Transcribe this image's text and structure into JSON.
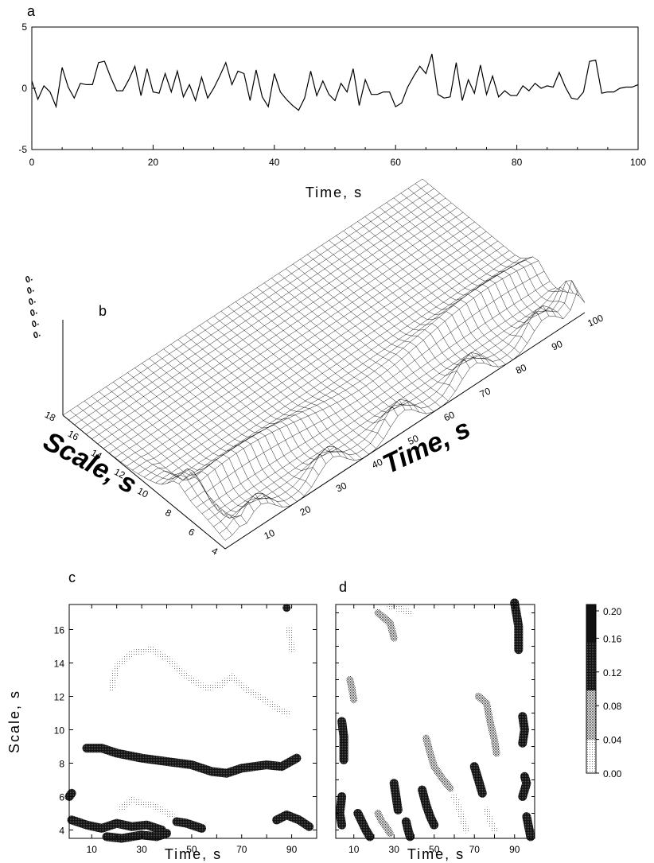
{
  "chart_data": [
    {
      "panel": "a",
      "type": "line",
      "xlabel": "Time, s",
      "xlim": [
        0,
        100
      ],
      "ylim": [
        -5,
        5
      ],
      "xticks": [
        0,
        20,
        40,
        60,
        80,
        100
      ],
      "yticks": [
        5,
        0,
        -5
      ],
      "series": [
        {
          "x": [
            0,
            1,
            2,
            3,
            4,
            5,
            6,
            7,
            8,
            9,
            10,
            11,
            12,
            13,
            14,
            15,
            16,
            17,
            18,
            19,
            20,
            21,
            22,
            23,
            24,
            25,
            26,
            27,
            28,
            29,
            30,
            31,
            32,
            33,
            34,
            35,
            36,
            37,
            38,
            39,
            40,
            41,
            42,
            43,
            44,
            45,
            46,
            47,
            48,
            49,
            50,
            51,
            52,
            53,
            54,
            55,
            56,
            57,
            58,
            59,
            60,
            61,
            62,
            63,
            64,
            65,
            66,
            67,
            68,
            69,
            70,
            71,
            72,
            73,
            74,
            75,
            76,
            77,
            78,
            79,
            80,
            81,
            82,
            83,
            84,
            85,
            86,
            87,
            88,
            89,
            90,
            91,
            92,
            93,
            94,
            95,
            96,
            97,
            98,
            99,
            100
          ],
          "y": [
            0.6,
            -0.9,
            0.2,
            -0.3,
            -1.5,
            1.7,
            0.1,
            -0.8,
            0.4,
            0.3,
            0.3,
            2.1,
            2.2,
            0.9,
            -0.2,
            -0.2,
            0.7,
            1.8,
            -0.6,
            1.6,
            -0.3,
            -0.4,
            1.2,
            -0.3,
            1.4,
            -0.7,
            0.3,
            -1.0,
            0.9,
            -0.8,
            0.0,
            1.0,
            2.1,
            0.3,
            1.4,
            1.2,
            -1.0,
            1.5,
            -0.7,
            -1.5,
            1.2,
            -0.3,
            -0.9,
            -1.4,
            -1.8,
            -0.8,
            1.4,
            -0.6,
            0.6,
            -0.5,
            -1.0,
            0.4,
            -0.3,
            1.6,
            -1.4,
            0.7,
            -0.5,
            -0.5,
            -0.3,
            -0.3,
            -1.5,
            -1.2,
            0.1,
            1.0,
            1.8,
            1.2,
            2.8,
            -0.5,
            -0.8,
            -0.7,
            2.1,
            -1.0,
            0.7,
            -0.4,
            1.9,
            -0.5,
            1.0,
            -0.7,
            -0.2,
            -0.6,
            -0.6,
            0.2,
            -0.2,
            0.4,
            0.0,
            0.2,
            0.1,
            1.3,
            0.1,
            -0.8,
            -0.9,
            -0.3,
            2.2,
            2.3,
            -0.4,
            -0.3,
            -0.3,
            0.0,
            0.1,
            0.1,
            0.3
          ]
        }
      ]
    },
    {
      "panel": "b",
      "type": "surface",
      "xlabel": "Time, s",
      "ylabel": "Scale, s",
      "xticks": [
        10,
        20,
        30,
        40,
        50,
        60,
        70,
        80,
        90,
        100
      ],
      "yticks": [
        18,
        16,
        14,
        12,
        10,
        8,
        6,
        4
      ],
      "zticks": [
        "0.",
        "0.",
        "0.",
        "0.",
        "0.",
        "0."
      ]
    },
    {
      "panel": "c",
      "type": "heatmap",
      "xlabel": "Time, s",
      "ylabel": "Scale, s",
      "xlim": [
        1,
        100
      ],
      "ylim": [
        3.5,
        17.5
      ],
      "xticks": [
        10,
        30,
        50,
        70,
        90
      ],
      "yticks": [
        4,
        6,
        8,
        10,
        12,
        14,
        16
      ],
      "ridges": [
        {
          "level": 0.2,
          "points": [
            [
              2,
              4.6
            ],
            [
              8,
              4.3
            ],
            [
              14,
              4.1
            ],
            [
              20,
              4.4
            ],
            [
              26,
              4.2
            ],
            [
              32,
              4.3
            ],
            [
              38,
              4.0
            ]
          ]
        },
        {
          "level": 0.2,
          "points": [
            [
              16,
              3.6
            ],
            [
              22,
              3.5
            ],
            [
              30,
              3.7
            ],
            [
              36,
              3.6
            ],
            [
              40,
              3.8
            ]
          ]
        },
        {
          "level": 0.2,
          "points": [
            [
              44,
              4.5
            ],
            [
              48,
              4.4
            ],
            [
              54,
              4.1
            ]
          ]
        },
        {
          "level": 0.2,
          "points": [
            [
              84,
              4.6
            ],
            [
              88,
              4.9
            ],
            [
              93,
              4.6
            ],
            [
              97,
              4.2
            ]
          ]
        },
        {
          "level": 0.2,
          "points": [
            [
              8,
              8.9
            ],
            [
              14,
              8.9
            ],
            [
              20,
              8.6
            ],
            [
              30,
              8.3
            ],
            [
              40,
              8.1
            ],
            [
              50,
              7.9
            ],
            [
              58,
              7.5
            ],
            [
              64,
              7.4
            ],
            [
              70,
              7.7
            ],
            [
              80,
              7.9
            ],
            [
              86,
              7.8
            ],
            [
              92,
              8.3
            ]
          ]
        },
        {
          "level": 0.08,
          "points": [
            [
              22,
              5.3
            ],
            [
              26,
              5.8
            ],
            [
              30,
              5.6
            ],
            [
              34,
              5.5
            ],
            [
              38,
              5.2
            ],
            [
              42,
              4.9
            ]
          ]
        },
        {
          "level": 0.08,
          "points": [
            [
              18,
              12.5
            ],
            [
              20,
              13.8
            ],
            [
              26,
              14.6
            ],
            [
              34,
              14.8
            ],
            [
              40,
              14.3
            ],
            [
              46,
              13.4
            ],
            [
              52,
              12.8
            ],
            [
              56,
              12.5
            ],
            [
              62,
              12.7
            ],
            [
              66,
              13.2
            ],
            [
              72,
              12.4
            ],
            [
              78,
              11.9
            ],
            [
              84,
              11.3
            ],
            [
              88,
              11.0
            ]
          ]
        },
        {
          "level": 0.2,
          "points": [
            [
              1,
              6.0
            ],
            [
              2,
              6.2
            ]
          ]
        },
        {
          "level": 0.2,
          "points": [
            [
              88,
              17.3
            ]
          ]
        },
        {
          "level": 0.04,
          "points": [
            [
              89,
              16.0
            ],
            [
              90,
              14.8
            ]
          ]
        }
      ]
    },
    {
      "panel": "d",
      "type": "heatmap",
      "xlabel": "Time, s",
      "xlim": [
        1,
        100
      ],
      "ylim": [
        3.5,
        17.5
      ],
      "xticks": [
        10,
        30,
        50,
        70,
        90
      ],
      "colorbar": {
        "ticks": [
          "0.20",
          "0.16",
          "0.12",
          "0.08",
          "0.04",
          "0.00"
        ],
        "range": [
          0,
          0.2
        ]
      },
      "ridges": [
        {
          "level": 0.2,
          "points": [
            [
              4,
              10.5
            ],
            [
              5,
              9.6
            ],
            [
              5,
              8.2
            ]
          ]
        },
        {
          "level": 0.2,
          "points": [
            [
              4,
              6.0
            ],
            [
              3,
              5.0
            ],
            [
              4,
              4.3
            ]
          ]
        },
        {
          "level": 0.12,
          "points": [
            [
              8,
              13.0
            ],
            [
              9,
              12.5
            ],
            [
              10,
              11.8
            ]
          ]
        },
        {
          "level": 0.12,
          "points": [
            [
              22,
              17.0
            ],
            [
              28,
              16.4
            ],
            [
              30,
              15.5
            ]
          ]
        },
        {
          "level": 0.08,
          "points": [
            [
              28,
              17.4
            ],
            [
              34,
              17.2
            ],
            [
              38,
              17.0
            ]
          ]
        },
        {
          "level": 0.2,
          "points": [
            [
              12,
              5.0
            ],
            [
              14,
              4.5
            ],
            [
              16,
              4.0
            ],
            [
              18,
              3.6
            ]
          ]
        },
        {
          "level": 0.12,
          "points": [
            [
              22,
              5.0
            ],
            [
              24,
              4.5
            ],
            [
              26,
              4.2
            ],
            [
              28,
              3.8
            ]
          ]
        },
        {
          "level": 0.2,
          "points": [
            [
              30,
              6.8
            ],
            [
              31,
              6.0
            ],
            [
              32,
              5.2
            ]
          ]
        },
        {
          "level": 0.2,
          "points": [
            [
              36,
              4.5
            ],
            [
              37,
              4.0
            ],
            [
              38,
              3.6
            ]
          ]
        },
        {
          "level": 0.2,
          "points": [
            [
              44,
              6.4
            ],
            [
              46,
              5.5
            ],
            [
              48,
              4.8
            ],
            [
              50,
              4.3
            ]
          ]
        },
        {
          "level": 0.12,
          "points": [
            [
              46,
              9.5
            ],
            [
              48,
              8.6
            ],
            [
              50,
              7.8
            ],
            [
              54,
              7.1
            ],
            [
              58,
              6.5
            ]
          ]
        },
        {
          "level": 0.08,
          "points": [
            [
              60,
              6.0
            ],
            [
              62,
              5.4
            ],
            [
              64,
              4.7
            ],
            [
              66,
              4.0
            ]
          ]
        },
        {
          "level": 0.2,
          "points": [
            [
              70,
              7.8
            ],
            [
              72,
              7.0
            ],
            [
              74,
              6.2
            ]
          ]
        },
        {
          "level": 0.12,
          "points": [
            [
              72,
              12.0
            ],
            [
              76,
              11.6
            ],
            [
              78,
              10.4
            ],
            [
              80,
              9.4
            ],
            [
              81,
              8.6
            ]
          ]
        },
        {
          "level": 0.08,
          "points": [
            [
              76,
              5.2
            ],
            [
              78,
              4.5
            ],
            [
              80,
              4.0
            ]
          ]
        },
        {
          "level": 0.2,
          "points": [
            [
              90,
              17.6
            ],
            [
              92,
              16.2
            ],
            [
              92,
              14.8
            ]
          ]
        },
        {
          "level": 0.2,
          "points": [
            [
              94,
              10.8
            ],
            [
              95,
              10.0
            ],
            [
              94,
              9.2
            ]
          ]
        },
        {
          "level": 0.2,
          "points": [
            [
              95,
              7.2
            ],
            [
              96,
              6.8
            ],
            [
              94,
              6.0
            ]
          ]
        },
        {
          "level": 0.2,
          "points": [
            [
              96,
              4.8
            ],
            [
              97,
              4.2
            ],
            [
              98,
              3.6
            ]
          ]
        }
      ]
    }
  ],
  "labels": {
    "a": "a",
    "b": "b",
    "c": "c",
    "d": "d"
  }
}
